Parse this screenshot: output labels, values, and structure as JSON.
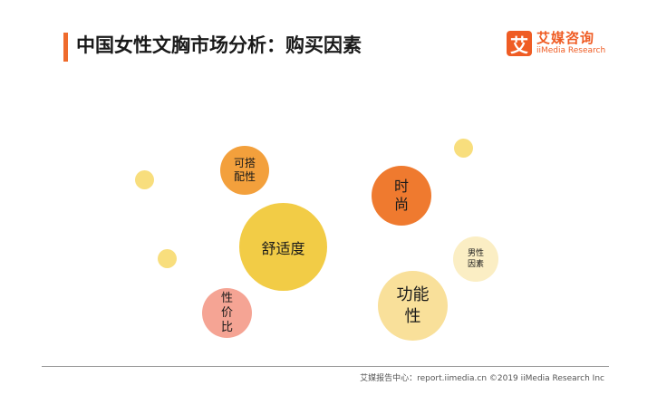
{
  "page": {
    "title": "中国女性文胸市场分析：购买因素"
  },
  "logo": {
    "mark": "艾",
    "name_cn": "艾媒咨询",
    "name_en": "iiMedia Research"
  },
  "bubbles": [
    {
      "id": "comfort",
      "text": "舒适度",
      "color": "#f2cc46"
    },
    {
      "id": "fashion",
      "text": "时尚",
      "color": "#ef7a2f"
    },
    {
      "id": "function",
      "text": "功能性",
      "color": "#f9e09a"
    },
    {
      "id": "matching",
      "text": "可搭配性",
      "color": "#f3a03c"
    },
    {
      "id": "value",
      "text": "性价比",
      "color": "#f5a494"
    },
    {
      "id": "male",
      "text": "男性因素",
      "color": "#fbeec4"
    }
  ],
  "footer": {
    "source": "艾媒报告中心：report.iimedia.cn  ©2019  iiMedia Research  Inc"
  }
}
